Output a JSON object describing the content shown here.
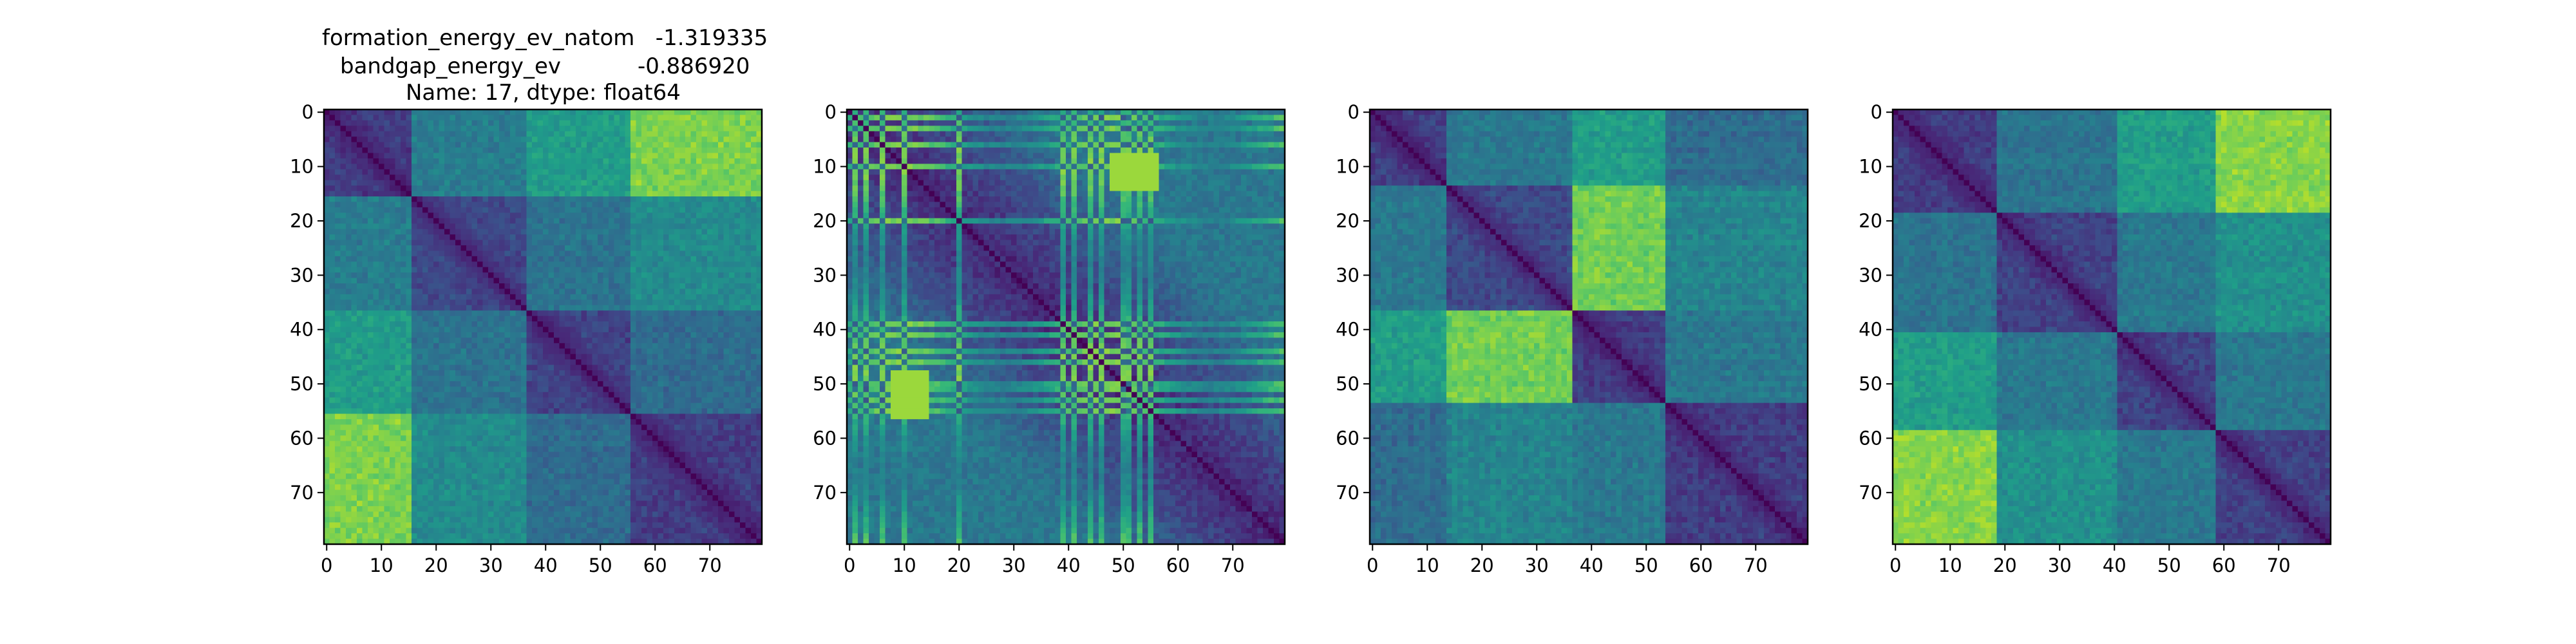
{
  "figure": {
    "title_lines": [
      "formation_energy_ev_natom   -1.319335",
      "bandgap_energy_ev           -0.886920",
      "Name: 17, dtype: float64"
    ]
  },
  "chart_data": [
    {
      "type": "heatmap",
      "title": "",
      "xlabel": "",
      "ylabel": "",
      "size": 80,
      "x_ticks": [
        0,
        10,
        20,
        30,
        40,
        50,
        60,
        70
      ],
      "y_ticks": [
        0,
        10,
        20,
        30,
        40,
        50,
        60,
        70
      ],
      "xlim": [
        0,
        79
      ],
      "ylim": [
        79,
        0
      ],
      "colormap": "viridis",
      "pattern": "block-structured pairwise distance matrix, zero diagonal",
      "block_boundaries": [
        0,
        16,
        37,
        56,
        80
      ]
    },
    {
      "type": "heatmap",
      "title": "",
      "xlabel": "",
      "ylabel": "",
      "size": 80,
      "x_ticks": [
        0,
        10,
        20,
        30,
        40,
        50,
        60,
        70
      ],
      "y_ticks": [
        0,
        10,
        20,
        30,
        40,
        50,
        60,
        70
      ],
      "xlim": [
        0,
        79
      ],
      "ylim": [
        79,
        0
      ],
      "colormap": "viridis",
      "pattern": "striped pairwise distance matrix, zero diagonal",
      "bright_stripes": [
        1,
        3,
        6,
        10,
        20,
        39,
        41,
        44,
        46,
        50,
        51,
        53,
        55
      ]
    },
    {
      "type": "heatmap",
      "title": "",
      "xlabel": "",
      "ylabel": "",
      "size": 80,
      "x_ticks": [
        0,
        10,
        20,
        30,
        40,
        50,
        60,
        70
      ],
      "y_ticks": [
        0,
        10,
        20,
        30,
        40,
        50,
        60,
        70
      ],
      "xlim": [
        0,
        79
      ],
      "ylim": [
        79,
        0
      ],
      "colormap": "viridis",
      "pattern": "block-structured pairwise distance matrix, zero diagonal",
      "block_boundaries": [
        0,
        14,
        37,
        54,
        80
      ]
    },
    {
      "type": "heatmap",
      "title": "",
      "xlabel": "",
      "ylabel": "",
      "size": 80,
      "x_ticks": [
        0,
        10,
        20,
        30,
        40,
        50,
        60,
        70
      ],
      "y_ticks": [
        0,
        10,
        20,
        30,
        40,
        50,
        60,
        70
      ],
      "xlim": [
        0,
        79
      ],
      "ylim": [
        79,
        0
      ],
      "colormap": "viridis",
      "pattern": "block-structured pairwise distance matrix, zero diagonal",
      "block_boundaries": [
        0,
        19,
        41,
        59,
        80
      ]
    }
  ]
}
